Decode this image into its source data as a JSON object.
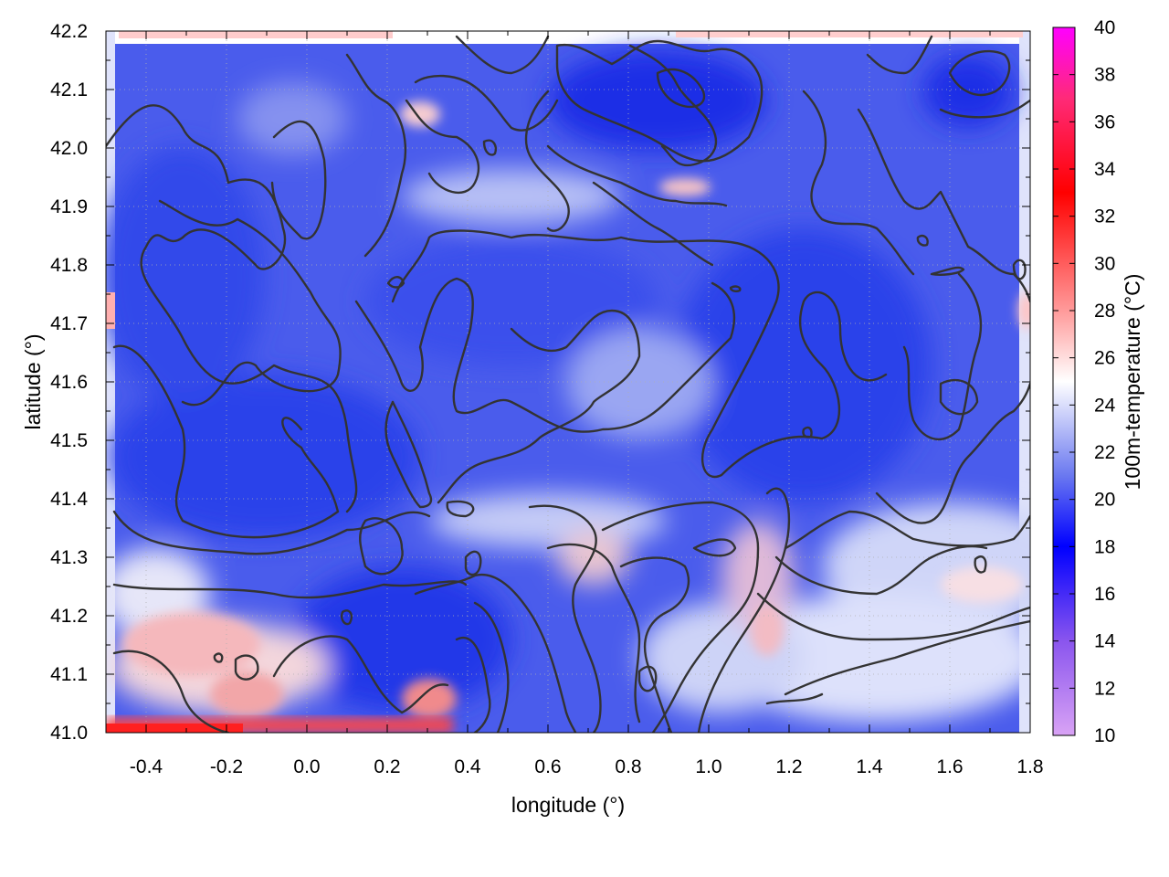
{
  "chart_data": {
    "type": "heatmap",
    "xlabel": "longitude (°)",
    "ylabel": "latitude (°)",
    "colorbar_label": "100m-temperature (°C)",
    "xlim": [
      -0.5,
      1.8
    ],
    "ylim": [
      41.0,
      42.2
    ],
    "x_ticks": [
      "-0.4",
      "-0.2",
      "0.0",
      "0.2",
      "0.4",
      "0.6",
      "0.8",
      "1.0",
      "1.2",
      "1.4",
      "1.6",
      "1.8"
    ],
    "y_ticks": [
      "41.0",
      "41.1",
      "41.2",
      "41.3",
      "41.4",
      "41.5",
      "41.6",
      "41.7",
      "41.8",
      "41.9",
      "42.0",
      "42.1",
      "42.2"
    ],
    "colorbar_ticks": [
      "10",
      "12",
      "14",
      "16",
      "18",
      "20",
      "22",
      "24",
      "26",
      "28",
      "30",
      "32",
      "34",
      "36",
      "38",
      "40"
    ],
    "colorbar_range": [
      10,
      40
    ],
    "colormap": [
      {
        "t": 10,
        "color": "#d9a3f5"
      },
      {
        "t": 14,
        "color": "#8a55ee"
      },
      {
        "t": 18,
        "color": "#0000ff"
      },
      {
        "t": 21,
        "color": "#6a78f0"
      },
      {
        "t": 25,
        "color": "#ffffff"
      },
      {
        "t": 28,
        "color": "#ff9a9a"
      },
      {
        "t": 33,
        "color": "#ff0000"
      },
      {
        "t": 37,
        "color": "#ff2a78"
      },
      {
        "t": 40,
        "color": "#ff00ff"
      }
    ],
    "grid": true,
    "colors": {
      "cool_region": "#3b50ea",
      "deep_cool": "#1a2fe6",
      "mild_region": "#aab4f2",
      "warm_region": "#ffd2d2",
      "hot_edge": "#ff4444",
      "contour": "#333333"
    }
  }
}
